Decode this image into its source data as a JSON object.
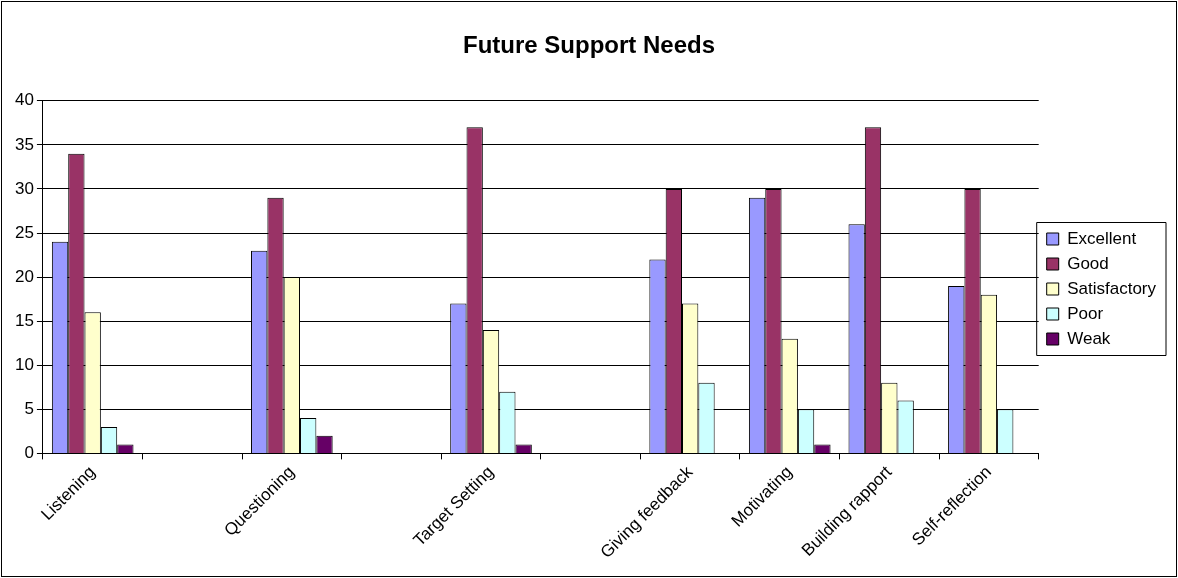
{
  "chart_data": {
    "type": "bar",
    "title": "Future Support Needs",
    "categories": [
      "Listening",
      null,
      "Questioning",
      null,
      "Target Setting",
      null,
      "Giving feedback",
      "Motivating",
      "Building rapport",
      "Self-reflection"
    ],
    "series": [
      {
        "name": "Excellent",
        "color": "#9999ff",
        "values": [
          24,
          null,
          23,
          null,
          17,
          null,
          22,
          29,
          26,
          19
        ]
      },
      {
        "name": "Good",
        "color": "#993366",
        "values": [
          34,
          null,
          29,
          null,
          37,
          null,
          30,
          30,
          37,
          30
        ]
      },
      {
        "name": "Satisfactory",
        "color": "#ffffcc",
        "values": [
          16,
          null,
          20,
          null,
          14,
          null,
          17,
          13,
          8,
          18
        ]
      },
      {
        "name": "Poor",
        "color": "#ccffff",
        "values": [
          3,
          null,
          4,
          null,
          7,
          null,
          8,
          5,
          6,
          5
        ]
      },
      {
        "name": "Weak",
        "color": "#660066",
        "values": [
          1,
          null,
          2,
          null,
          1,
          null,
          0,
          1,
          0,
          0
        ]
      }
    ],
    "ylim": [
      0,
      40
    ],
    "yticks": [
      0,
      5,
      10,
      15,
      20,
      25,
      30,
      35,
      40
    ],
    "grid": "y",
    "legend": "right"
  }
}
